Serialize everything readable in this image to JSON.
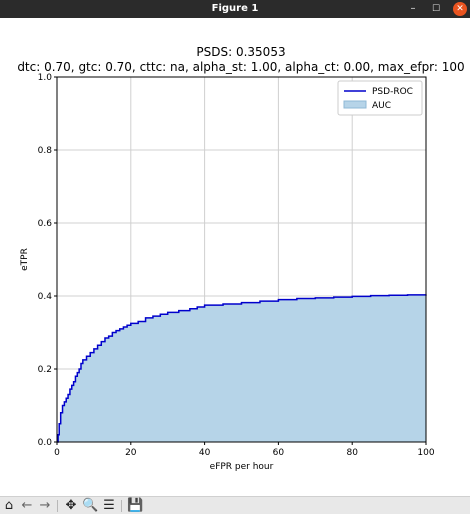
{
  "window": {
    "title": "Figure 1",
    "minimize_glyph": "–",
    "maximize_glyph": "☐",
    "close_glyph": "✕",
    "close_color": "#e95420"
  },
  "toolbar": {
    "home_glyph": "⌂",
    "home_icon": "home-icon",
    "back_glyph": "←",
    "back_icon": "back-arrow-icon",
    "forward_glyph": "→",
    "forward_icon": "forward-arrow-icon",
    "pan_glyph": "✥",
    "pan_icon": "pan-icon",
    "zoom_glyph": "🔍",
    "zoom_icon": "zoom-icon",
    "configure_glyph": "☰",
    "configure_icon": "configure-subplots-icon",
    "save_glyph": "💾",
    "save_icon": "save-icon"
  },
  "chart_data": {
    "type": "area",
    "title": "PSDS: 0.35053",
    "subtitle": "dtc: 0.70, gtc: 0.70, cttc: na, alpha_st: 1.00, alpha_ct: 0.00, max_efpr: 100",
    "xlabel": "eFPR per hour",
    "ylabel": "eTPR",
    "xlim": [
      0,
      100
    ],
    "ylim": [
      0,
      1.0
    ],
    "xticks": [
      0,
      20,
      40,
      60,
      80,
      100
    ],
    "xtick_labels": [
      "0",
      "20",
      "40",
      "60",
      "80",
      "100"
    ],
    "yticks": [
      0.0,
      0.2,
      0.4,
      0.6,
      0.8,
      1.0
    ],
    "ytick_labels": [
      "0.0",
      "0.2",
      "0.4",
      "0.6",
      "0.8",
      "1.0"
    ],
    "grid": true,
    "legend_position": "top-right",
    "colors": {
      "line": "#0000cc",
      "fill": "#b6d4e8",
      "grid": "#d0d0d0"
    },
    "series": [
      {
        "name": "PSD-ROC",
        "style": "step-line",
        "x": [
          0,
          0.3,
          0.6,
          1.0,
          1.5,
          2.0,
          2.5,
          3.0,
          3.5,
          4.0,
          4.5,
          5.0,
          5.5,
          6.0,
          6.5,
          7.0,
          8.0,
          9.0,
          10.0,
          11.0,
          12.0,
          13.0,
          14.0,
          15.0,
          16.0,
          17.0,
          18.0,
          19.0,
          20.0,
          22.0,
          24.0,
          26.0,
          28.0,
          30.0,
          33.0,
          36.0,
          38.0,
          40.0,
          45.0,
          50.0,
          55.0,
          60.0,
          65.0,
          70.0,
          75.0,
          80.0,
          85.0,
          90.0,
          95.0,
          100.0
        ],
        "y": [
          0,
          0.02,
          0.05,
          0.08,
          0.1,
          0.11,
          0.12,
          0.13,
          0.145,
          0.155,
          0.165,
          0.18,
          0.19,
          0.2,
          0.215,
          0.225,
          0.235,
          0.245,
          0.255,
          0.265,
          0.275,
          0.285,
          0.29,
          0.3,
          0.305,
          0.31,
          0.315,
          0.32,
          0.325,
          0.33,
          0.34,
          0.345,
          0.35,
          0.355,
          0.36,
          0.365,
          0.37,
          0.375,
          0.378,
          0.382,
          0.386,
          0.39,
          0.393,
          0.395,
          0.397,
          0.399,
          0.401,
          0.402,
          0.403,
          0.404
        ]
      },
      {
        "name": "AUC",
        "style": "filled-area"
      }
    ]
  }
}
